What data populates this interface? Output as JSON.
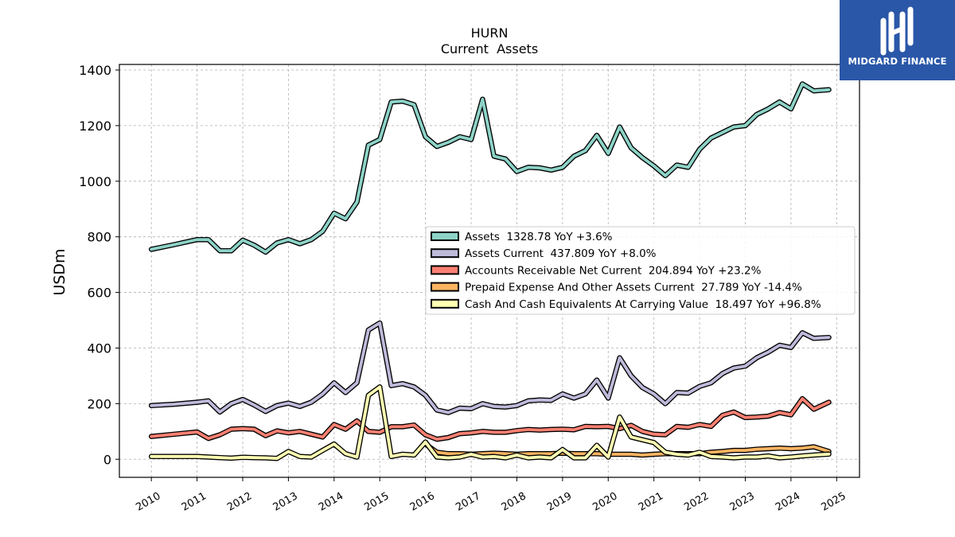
{
  "chart_data": {
    "type": "line",
    "title": "HURN",
    "subtitle": "Current  Assets",
    "ylabel": "USDm",
    "xlabel": "",
    "xlim": [
      2009.3,
      2025.5
    ],
    "ylim": [
      -65,
      1420
    ],
    "yticks": [
      0,
      200,
      400,
      600,
      800,
      1000,
      1200,
      1400
    ],
    "xticks": [
      2010,
      2011,
      2012,
      2013,
      2014,
      2015,
      2016,
      2017,
      2018,
      2019,
      2020,
      2021,
      2022,
      2023,
      2024,
      2025
    ],
    "grid": true,
    "legend_position": "center-right",
    "series": [
      {
        "name": "Assets",
        "legend_label": "Assets  1328.78 YoY +3.6%",
        "color": "#8dd3c7",
        "points": [
          [
            2010.0,
            755
          ],
          [
            2010.5,
            772
          ],
          [
            2011.0,
            790
          ],
          [
            2011.25,
            790
          ],
          [
            2011.5,
            750
          ],
          [
            2011.75,
            750
          ],
          [
            2012.0,
            788
          ],
          [
            2012.25,
            770
          ],
          [
            2012.5,
            745
          ],
          [
            2012.75,
            778
          ],
          [
            2013.0,
            790
          ],
          [
            2013.25,
            775
          ],
          [
            2013.5,
            790
          ],
          [
            2013.75,
            820
          ],
          [
            2014.0,
            885
          ],
          [
            2014.25,
            865
          ],
          [
            2014.5,
            925
          ],
          [
            2014.75,
            1130
          ],
          [
            2015.0,
            1150
          ],
          [
            2015.25,
            1285
          ],
          [
            2015.5,
            1288
          ],
          [
            2015.75,
            1275
          ],
          [
            2016.0,
            1160
          ],
          [
            2016.25,
            1125
          ],
          [
            2016.5,
            1140
          ],
          [
            2016.75,
            1160
          ],
          [
            2017.0,
            1150
          ],
          [
            2017.25,
            1295
          ],
          [
            2017.5,
            1090
          ],
          [
            2017.75,
            1080
          ],
          [
            2018.0,
            1035
          ],
          [
            2018.25,
            1050
          ],
          [
            2018.5,
            1048
          ],
          [
            2018.75,
            1040
          ],
          [
            2019.0,
            1050
          ],
          [
            2019.25,
            1090
          ],
          [
            2019.5,
            1110
          ],
          [
            2019.75,
            1165
          ],
          [
            2020.0,
            1100
          ],
          [
            2020.25,
            1195
          ],
          [
            2020.5,
            1120
          ],
          [
            2020.75,
            1085
          ],
          [
            2021.0,
            1055
          ],
          [
            2021.25,
            1020
          ],
          [
            2021.5,
            1058
          ],
          [
            2021.75,
            1050
          ],
          [
            2022.0,
            1115
          ],
          [
            2022.25,
            1155
          ],
          [
            2022.5,
            1175
          ],
          [
            2022.75,
            1195
          ],
          [
            2023.0,
            1200
          ],
          [
            2023.25,
            1240
          ],
          [
            2023.5,
            1260
          ],
          [
            2023.75,
            1285
          ],
          [
            2024.0,
            1260
          ],
          [
            2024.25,
            1350
          ],
          [
            2024.5,
            1325
          ],
          [
            2024.83,
            1329
          ]
        ]
      },
      {
        "name": "Assets Current",
        "legend_label": "Assets Current  437.809 YoY +8.0%",
        "color": "#bebada",
        "points": [
          [
            2010.0,
            193
          ],
          [
            2010.5,
            198
          ],
          [
            2011.0,
            205
          ],
          [
            2011.25,
            210
          ],
          [
            2011.5,
            170
          ],
          [
            2011.75,
            200
          ],
          [
            2012.0,
            215
          ],
          [
            2012.25,
            195
          ],
          [
            2012.5,
            172
          ],
          [
            2012.75,
            193
          ],
          [
            2013.0,
            202
          ],
          [
            2013.25,
            190
          ],
          [
            2013.5,
            205
          ],
          [
            2013.75,
            235
          ],
          [
            2014.0,
            275
          ],
          [
            2014.25,
            240
          ],
          [
            2014.5,
            275
          ],
          [
            2014.75,
            465
          ],
          [
            2015.0,
            490
          ],
          [
            2015.25,
            265
          ],
          [
            2015.5,
            272
          ],
          [
            2015.75,
            260
          ],
          [
            2016.0,
            230
          ],
          [
            2016.25,
            177
          ],
          [
            2016.5,
            168
          ],
          [
            2016.75,
            184
          ],
          [
            2017.0,
            182
          ],
          [
            2017.25,
            200
          ],
          [
            2017.5,
            190
          ],
          [
            2017.75,
            188
          ],
          [
            2018.0,
            193
          ],
          [
            2018.25,
            210
          ],
          [
            2018.5,
            213
          ],
          [
            2018.75,
            212
          ],
          [
            2019.0,
            235
          ],
          [
            2019.25,
            220
          ],
          [
            2019.5,
            235
          ],
          [
            2019.75,
            285
          ],
          [
            2020.0,
            220
          ],
          [
            2020.25,
            365
          ],
          [
            2020.5,
            300
          ],
          [
            2020.75,
            258
          ],
          [
            2021.0,
            235
          ],
          [
            2021.25,
            200
          ],
          [
            2021.5,
            240
          ],
          [
            2021.75,
            238
          ],
          [
            2022.0,
            262
          ],
          [
            2022.25,
            275
          ],
          [
            2022.5,
            308
          ],
          [
            2022.75,
            328
          ],
          [
            2023.0,
            335
          ],
          [
            2023.25,
            365
          ],
          [
            2023.5,
            385
          ],
          [
            2023.75,
            410
          ],
          [
            2024.0,
            402
          ],
          [
            2024.25,
            455
          ],
          [
            2024.5,
            435
          ],
          [
            2024.83,
            438
          ]
        ]
      },
      {
        "name": "Accounts Receivable Net Current",
        "legend_label": "Accounts Receivable Net Current  204.894 YoY +23.2%",
        "color": "#fb8072",
        "points": [
          [
            2010.0,
            82
          ],
          [
            2010.5,
            90
          ],
          [
            2011.0,
            98
          ],
          [
            2011.25,
            75
          ],
          [
            2011.5,
            88
          ],
          [
            2011.75,
            108
          ],
          [
            2012.0,
            110
          ],
          [
            2012.25,
            108
          ],
          [
            2012.5,
            85
          ],
          [
            2012.75,
            102
          ],
          [
            2013.0,
            95
          ],
          [
            2013.25,
            100
          ],
          [
            2013.5,
            90
          ],
          [
            2013.75,
            80
          ],
          [
            2014.0,
            125
          ],
          [
            2014.25,
            108
          ],
          [
            2014.5,
            138
          ],
          [
            2014.75,
            100
          ],
          [
            2015.0,
            97
          ],
          [
            2015.25,
            117
          ],
          [
            2015.5,
            117
          ],
          [
            2015.75,
            123
          ],
          [
            2016.0,
            88
          ],
          [
            2016.25,
            72
          ],
          [
            2016.5,
            78
          ],
          [
            2016.75,
            92
          ],
          [
            2017.0,
            95
          ],
          [
            2017.25,
            100
          ],
          [
            2017.5,
            97
          ],
          [
            2017.75,
            97
          ],
          [
            2018.0,
            103
          ],
          [
            2018.25,
            107
          ],
          [
            2018.5,
            105
          ],
          [
            2018.75,
            107
          ],
          [
            2019.0,
            108
          ],
          [
            2019.25,
            106
          ],
          [
            2019.5,
            118
          ],
          [
            2019.75,
            117
          ],
          [
            2020.0,
            118
          ],
          [
            2020.25,
            110
          ],
          [
            2020.5,
            122
          ],
          [
            2020.75,
            100
          ],
          [
            2021.0,
            90
          ],
          [
            2021.25,
            88
          ],
          [
            2021.5,
            118
          ],
          [
            2021.75,
            115
          ],
          [
            2022.0,
            125
          ],
          [
            2022.25,
            118
          ],
          [
            2022.5,
            158
          ],
          [
            2022.75,
            170
          ],
          [
            2023.0,
            150
          ],
          [
            2023.25,
            152
          ],
          [
            2023.5,
            155
          ],
          [
            2023.75,
            168
          ],
          [
            2024.0,
            160
          ],
          [
            2024.25,
            218
          ],
          [
            2024.5,
            180
          ],
          [
            2024.83,
            205
          ]
        ]
      },
      {
        "name": "Prepaid Expense And Other Assets Current",
        "legend_label": "Prepaid Expense And Other Assets Current  27.789 YoY -14.4%",
        "color": "#fdb462",
        "points": [
          [
            2016.0,
            55
          ],
          [
            2016.25,
            25
          ],
          [
            2016.5,
            20
          ],
          [
            2016.75,
            20
          ],
          [
            2017.0,
            18
          ],
          [
            2017.25,
            20
          ],
          [
            2017.5,
            22
          ],
          [
            2017.75,
            20
          ],
          [
            2018.0,
            18
          ],
          [
            2018.25,
            20
          ],
          [
            2018.5,
            20
          ],
          [
            2018.75,
            20
          ],
          [
            2019.0,
            22
          ],
          [
            2019.25,
            20
          ],
          [
            2019.5,
            20
          ],
          [
            2019.75,
            20
          ],
          [
            2020.0,
            18
          ],
          [
            2020.25,
            18
          ],
          [
            2020.5,
            18
          ],
          [
            2020.75,
            15
          ],
          [
            2021.0,
            18
          ],
          [
            2021.25,
            20
          ],
          [
            2021.5,
            20
          ],
          [
            2021.75,
            20
          ],
          [
            2022.0,
            20
          ],
          [
            2022.25,
            25
          ],
          [
            2022.5,
            28
          ],
          [
            2022.75,
            32
          ],
          [
            2023.0,
            32
          ],
          [
            2023.25,
            36
          ],
          [
            2023.5,
            38
          ],
          [
            2023.75,
            40
          ],
          [
            2024.0,
            38
          ],
          [
            2024.25,
            40
          ],
          [
            2024.5,
            45
          ],
          [
            2024.83,
            28
          ]
        ]
      },
      {
        "name": "Cash And Cash Equivalents At Carrying Value",
        "legend_label": "Cash And Cash Equivalents At Carrying Value  18.497 YoY +96.8%",
        "color": "#ffffb3",
        "points": [
          [
            2010.0,
            10
          ],
          [
            2010.5,
            10
          ],
          [
            2011.0,
            10
          ],
          [
            2011.25,
            8
          ],
          [
            2011.5,
            6
          ],
          [
            2011.75,
            4
          ],
          [
            2012.0,
            7
          ],
          [
            2012.25,
            6
          ],
          [
            2012.5,
            5
          ],
          [
            2012.75,
            3
          ],
          [
            2013.0,
            28
          ],
          [
            2013.25,
            10
          ],
          [
            2013.5,
            8
          ],
          [
            2013.75,
            32
          ],
          [
            2014.0,
            55
          ],
          [
            2014.25,
            20
          ],
          [
            2014.5,
            8
          ],
          [
            2014.75,
            230
          ],
          [
            2015.0,
            260
          ],
          [
            2015.25,
            10
          ],
          [
            2015.5,
            18
          ],
          [
            2015.75,
            15
          ],
          [
            2016.0,
            62
          ],
          [
            2016.25,
            8
          ],
          [
            2016.5,
            5
          ],
          [
            2016.75,
            8
          ],
          [
            2017.0,
            18
          ],
          [
            2017.25,
            8
          ],
          [
            2017.5,
            10
          ],
          [
            2017.75,
            5
          ],
          [
            2018.0,
            15
          ],
          [
            2018.25,
            5
          ],
          [
            2018.5,
            8
          ],
          [
            2018.75,
            5
          ],
          [
            2019.0,
            35
          ],
          [
            2019.25,
            5
          ],
          [
            2019.5,
            5
          ],
          [
            2019.75,
            50
          ],
          [
            2020.0,
            8
          ],
          [
            2020.25,
            152
          ],
          [
            2020.5,
            80
          ],
          [
            2020.75,
            70
          ],
          [
            2021.0,
            60
          ],
          [
            2021.25,
            25
          ],
          [
            2021.5,
            18
          ],
          [
            2021.75,
            15
          ],
          [
            2022.0,
            25
          ],
          [
            2022.25,
            10
          ],
          [
            2022.5,
            8
          ],
          [
            2022.75,
            5
          ],
          [
            2023.0,
            8
          ],
          [
            2023.25,
            8
          ],
          [
            2023.5,
            12
          ],
          [
            2023.75,
            5
          ],
          [
            2024.0,
            8
          ],
          [
            2024.25,
            12
          ],
          [
            2024.5,
            15
          ],
          [
            2024.83,
            18.5
          ]
        ]
      }
    ]
  },
  "branding": {
    "logo_text": "MIDGARD FINANCE",
    "logo_color": "#2a57a8"
  }
}
